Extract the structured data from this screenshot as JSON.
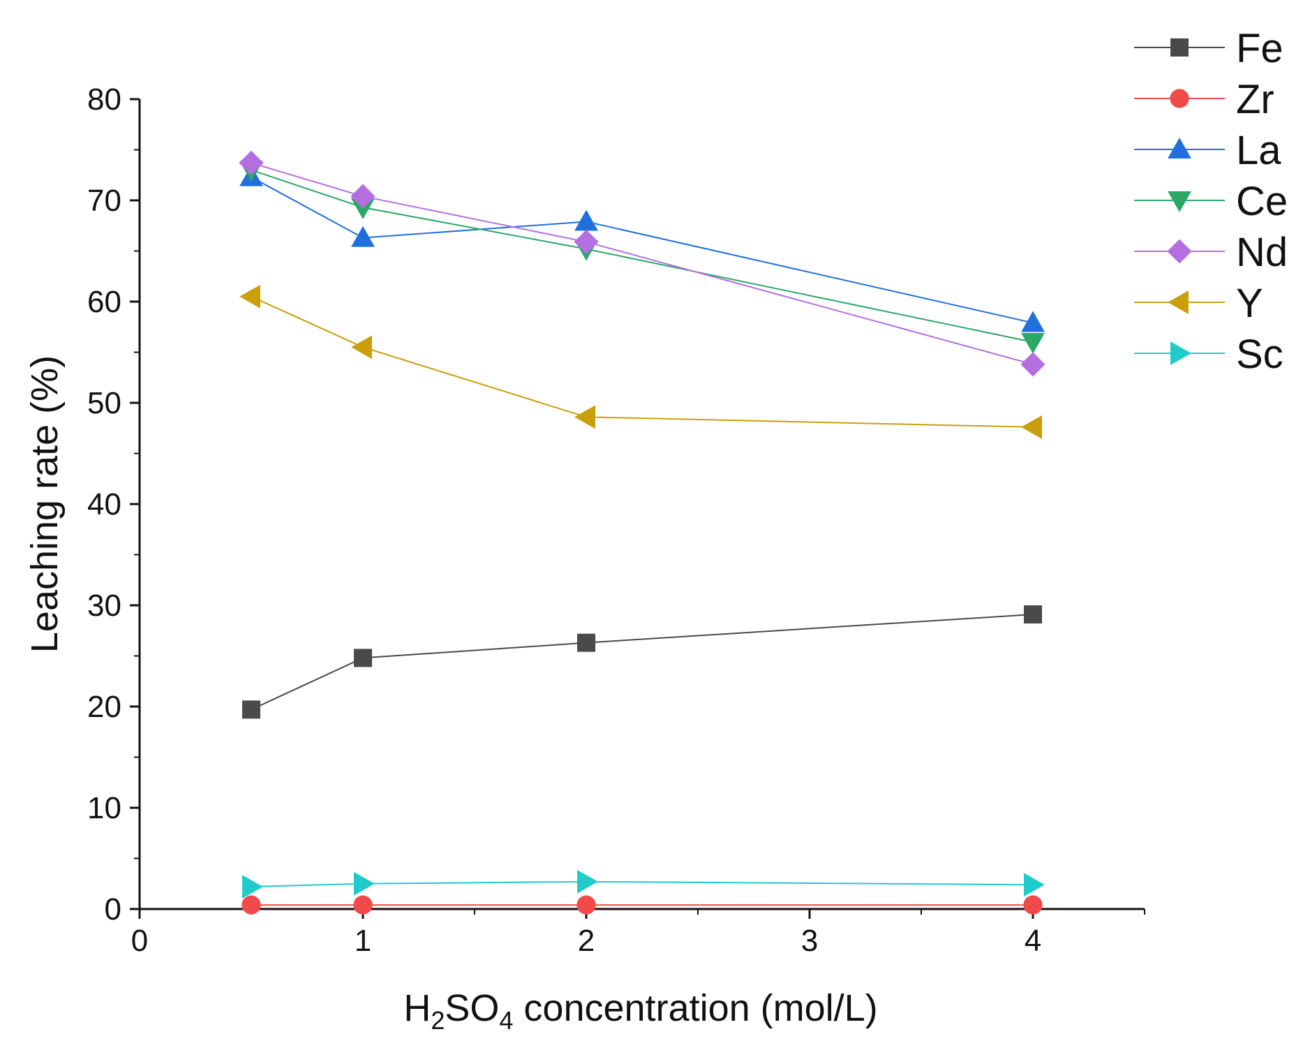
{
  "chart_data": {
    "type": "line",
    "title": "",
    "xlabel": {
      "pre": "H",
      "sub1": "2",
      "mid": "SO",
      "sub2": "4",
      "post": " concentration (mol/L)"
    },
    "ylabel": "Leaching rate (%)",
    "xlim": [
      0,
      4.5
    ],
    "ylim": [
      0,
      80
    ],
    "x_ticks": [
      0,
      1,
      2,
      3,
      4
    ],
    "y_ticks": [
      0,
      10,
      20,
      30,
      40,
      50,
      60,
      70,
      80
    ],
    "x": [
      0.5,
      1,
      2,
      4
    ],
    "legend_position": "top-right",
    "series": [
      {
        "name": "Fe",
        "marker": "square",
        "color": "#4a4a4a",
        "values": [
          19.7,
          24.8,
          26.3,
          29.1
        ]
      },
      {
        "name": "Zr",
        "marker": "circle",
        "color": "#f04a4a",
        "values": [
          0.4,
          0.4,
          0.4,
          0.4
        ]
      },
      {
        "name": "La",
        "marker": "triangle-up",
        "color": "#1f6fdc",
        "values": [
          72.3,
          66.3,
          67.9,
          57.9
        ]
      },
      {
        "name": "Ce",
        "marker": "triangle-down",
        "color": "#2aa866",
        "values": [
          73.0,
          69.3,
          65.2,
          56.0
        ]
      },
      {
        "name": "Nd",
        "marker": "diamond",
        "color": "#b46ee0",
        "values": [
          73.7,
          70.4,
          65.9,
          53.8
        ]
      },
      {
        "name": "Y",
        "marker": "triangle-left",
        "color": "#c9a00c",
        "values": [
          60.5,
          55.5,
          48.6,
          47.6
        ]
      },
      {
        "name": "Sc",
        "marker": "triangle-right",
        "color": "#20cbcb",
        "values": [
          2.2,
          2.5,
          2.7,
          2.4
        ]
      }
    ]
  }
}
